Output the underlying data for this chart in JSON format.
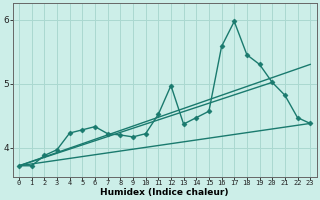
{
  "xlabel": "Humidex (Indice chaleur)",
  "background_color": "#cceee8",
  "grid_color": "#aad8d0",
  "line_color": "#1a7a6e",
  "xlim": [
    -0.5,
    23.5
  ],
  "ylim": [
    3.55,
    6.25
  ],
  "yticks": [
    4,
    5,
    6
  ],
  "xticks": [
    0,
    1,
    2,
    3,
    4,
    5,
    6,
    7,
    8,
    9,
    10,
    11,
    12,
    13,
    14,
    15,
    16,
    17,
    18,
    19,
    20,
    21,
    22,
    23
  ],
  "series": [
    {
      "x": [
        0,
        1,
        2,
        3,
        4,
        5,
        6,
        7,
        8,
        9,
        10,
        11,
        12,
        13,
        14,
        15,
        16,
        17,
        18,
        19,
        20,
        21,
        22,
        23
      ],
      "y": [
        3.72,
        3.72,
        3.88,
        3.97,
        4.23,
        4.28,
        4.33,
        4.22,
        4.2,
        4.17,
        4.22,
        4.52,
        4.97,
        4.37,
        4.47,
        4.57,
        5.58,
        5.97,
        5.45,
        5.3,
        5.02,
        4.82,
        4.47,
        4.38
      ],
      "marker": "D",
      "markersize": 2.5,
      "linewidth": 1.0
    },
    {
      "x": [
        0,
        23
      ],
      "y": [
        3.72,
        5.3
      ],
      "marker": null,
      "linewidth": 1.0
    },
    {
      "x": [
        0,
        20
      ],
      "y": [
        3.72,
        5.02
      ],
      "marker": null,
      "linewidth": 1.0
    },
    {
      "x": [
        0,
        23
      ],
      "y": [
        3.72,
        4.38
      ],
      "marker": null,
      "linewidth": 1.0
    }
  ]
}
